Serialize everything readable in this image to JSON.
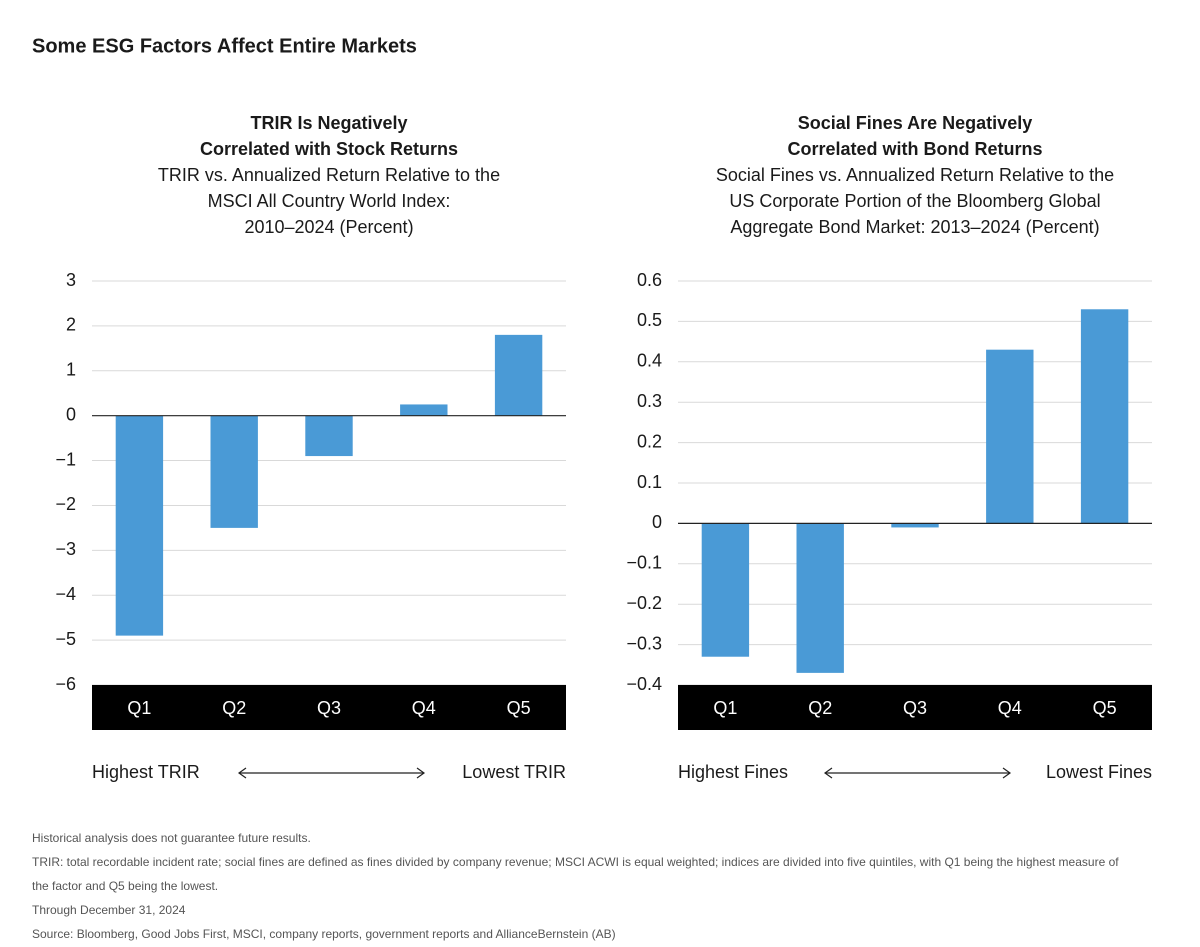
{
  "header": {
    "title": "Some ESG Factors Affect Entire Markets"
  },
  "chart_data": [
    {
      "type": "bar",
      "title": [
        "TRIR Is Negatively",
        "Correlated with Stock Returns"
      ],
      "subtitle": [
        "TRIR vs. Annualized Return Relative to the",
        "MSCI All Country World Index:",
        "2010–2024 (Percent)"
      ],
      "categories": [
        "Q1",
        "Q2",
        "Q3",
        "Q4",
        "Q5"
      ],
      "values": [
        -4.9,
        -2.5,
        -0.9,
        0.25,
        1.8
      ],
      "color": "#4a9ad6",
      "ylim": [
        -6,
        3
      ],
      "yticks": [
        {
          "value": -6,
          "label": "−6"
        },
        {
          "value": -5,
          "label": "−5"
        },
        {
          "value": -4,
          "label": "−4"
        },
        {
          "value": -3,
          "label": "−3"
        },
        {
          "value": -2,
          "label": "−2"
        },
        {
          "value": -1,
          "label": "−1"
        },
        0,
        1,
        2,
        3
      ],
      "grid": true,
      "x_range_labels": [
        "Highest TRIR",
        "Lowest TRIR"
      ]
    },
    {
      "type": "bar",
      "title": [
        "Social Fines Are Negatively",
        "Correlated with Bond Returns"
      ],
      "subtitle": [
        "Social Fines vs. Annualized Return Relative to the",
        "US Corporate Portion of the Bloomberg Global",
        "Aggregate Bond Market: 2013–2024 (Percent)"
      ],
      "categories": [
        "Q1",
        "Q2",
        "Q3",
        "Q4",
        "Q5"
      ],
      "values": [
        -0.33,
        -0.37,
        -0.01,
        0.43,
        0.53
      ],
      "color": "#4a9ad6",
      "ylim": [
        -0.4,
        0.6
      ],
      "yticks": [
        {
          "value": -0.4,
          "label": "−0.4"
        },
        {
          "value": -0.3,
          "label": "−0.3"
        },
        {
          "value": -0.2,
          "label": "−0.2"
        },
        {
          "value": -0.1,
          "label": "−0.1"
        },
        0,
        0.1,
        0.2,
        0.3,
        0.4,
        0.5,
        0.6
      ],
      "grid": true,
      "x_range_labels": [
        "Highest Fines",
        "Lowest Fines"
      ]
    }
  ],
  "notes": [
    "Historical analysis does not guarantee future results.",
    "TRIR: total recordable incident rate; social fines are defined as fines divided by company revenue; MSCI ACWI is equal weighted; indices are divided into five quintiles, with Q1 being the highest measure of the factor and Q5 being the lowest.",
    "Through December 31, 2024",
    "Source: Bloomberg, Good Jobs First, MSCI, company reports, government reports and AllianceBernstein (AB)"
  ]
}
